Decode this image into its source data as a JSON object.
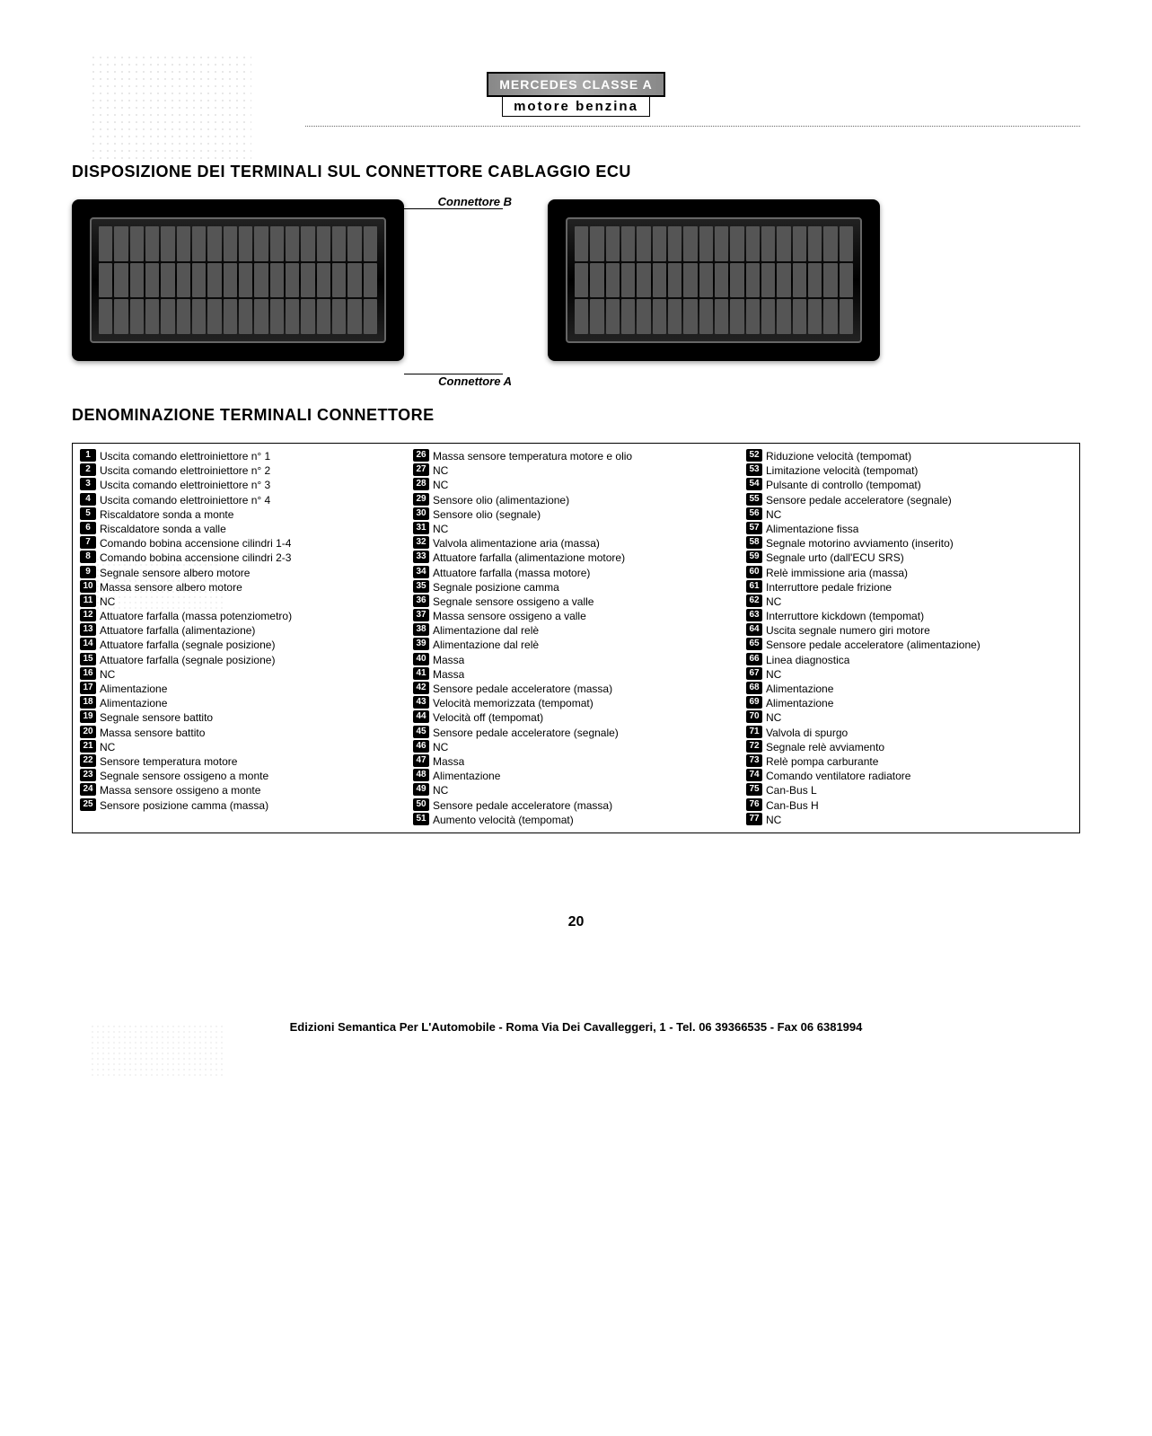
{
  "header": {
    "brand": "MERCEDES CLASSE A",
    "engine": "motore benzina"
  },
  "section1_title": "DISPOSIZIONE DEI TERMINALI SUL CONNETTORE CABLAGGIO ECU",
  "connector_labels": {
    "a": "Connettore A",
    "b": "Connettore B"
  },
  "section2_title": "DENOMINAZIONE TERMINALI CONNETTORE",
  "pins_col1": [
    {
      "n": "1",
      "t": "Uscita comando elettroiniettore n° 1"
    },
    {
      "n": "2",
      "t": "Uscita comando elettroiniettore n° 2"
    },
    {
      "n": "3",
      "t": "Uscita comando elettroiniettore n° 3"
    },
    {
      "n": "4",
      "t": "Uscita comando elettroiniettore n° 4"
    },
    {
      "n": "5",
      "t": "Riscaldatore sonda a monte"
    },
    {
      "n": "6",
      "t": "Riscaldatore sonda a valle"
    },
    {
      "n": "7",
      "t": "Comando bobina accensione cilindri 1-4"
    },
    {
      "n": "8",
      "t": "Comando bobina accensione cilindri 2-3"
    },
    {
      "n": "9",
      "t": "Segnale sensore albero motore"
    },
    {
      "n": "10",
      "t": "Massa sensore albero motore"
    },
    {
      "n": "11",
      "t": "NC"
    },
    {
      "n": "12",
      "t": "Attuatore farfalla (massa potenziometro)"
    },
    {
      "n": "13",
      "t": "Attuatore farfalla (alimentazione)"
    },
    {
      "n": "14",
      "t": "Attuatore farfalla (segnale posizione)"
    },
    {
      "n": "15",
      "t": "Attuatore farfalla (segnale posizione)"
    },
    {
      "n": "16",
      "t": "NC"
    },
    {
      "n": "17",
      "t": "Alimentazione"
    },
    {
      "n": "18",
      "t": "Alimentazione"
    },
    {
      "n": "19",
      "t": "Segnale sensore battito"
    },
    {
      "n": "20",
      "t": "Massa sensore battito"
    },
    {
      "n": "21",
      "t": "NC"
    },
    {
      "n": "22",
      "t": "Sensore temperatura motore"
    },
    {
      "n": "23",
      "t": "Segnale sensore ossigeno a monte"
    },
    {
      "n": "24",
      "t": "Massa sensore ossigeno a monte"
    },
    {
      "n": "25",
      "t": "Sensore posizione camma (massa)"
    }
  ],
  "pins_col2": [
    {
      "n": "26",
      "t": "Massa sensore temperatura motore e olio"
    },
    {
      "n": "27",
      "t": "NC"
    },
    {
      "n": "28",
      "t": "NC"
    },
    {
      "n": "29",
      "t": "Sensore olio (alimentazione)"
    },
    {
      "n": "30",
      "t": "Sensore olio (segnale)"
    },
    {
      "n": "31",
      "t": "NC"
    },
    {
      "n": "32",
      "t": "Valvola alimentazione aria (massa)"
    },
    {
      "n": "33",
      "t": "Attuatore farfalla (alimentazione motore)"
    },
    {
      "n": "34",
      "t": "Attuatore farfalla (massa motore)"
    },
    {
      "n": "35",
      "t": "Segnale posizione camma"
    },
    {
      "n": "36",
      "t": "Segnale sensore ossigeno a valle"
    },
    {
      "n": "37",
      "t": "Massa sensore ossigeno a valle"
    },
    {
      "n": "38",
      "t": "Alimentazione dal relè"
    },
    {
      "n": "39",
      "t": "Alimentazione dal relè"
    },
    {
      "n": "40",
      "t": "Massa"
    },
    {
      "n": "41",
      "t": "Massa"
    },
    {
      "n": "42",
      "t": "Sensore pedale acceleratore (massa)"
    },
    {
      "n": "43",
      "t": "Velocità memorizzata (tempomat)"
    },
    {
      "n": "44",
      "t": "Velocità off (tempomat)"
    },
    {
      "n": "45",
      "t": "Sensore pedale acceleratore (segnale)"
    },
    {
      "n": "46",
      "t": "NC"
    },
    {
      "n": "47",
      "t": "Massa"
    },
    {
      "n": "48",
      "t": "Alimentazione"
    },
    {
      "n": "49",
      "t": "NC"
    },
    {
      "n": "50",
      "t": "Sensore pedale acceleratore (massa)"
    },
    {
      "n": "51",
      "t": "Aumento velocità (tempomat)"
    }
  ],
  "pins_col3": [
    {
      "n": "52",
      "t": "Riduzione velocità (tempomat)"
    },
    {
      "n": "53",
      "t": "Limitazione velocità (tempomat)"
    },
    {
      "n": "54",
      "t": "Pulsante di controllo (tempomat)"
    },
    {
      "n": "55",
      "t": "Sensore pedale acceleratore (segnale)"
    },
    {
      "n": "56",
      "t": "NC"
    },
    {
      "n": "57",
      "t": "Alimentazione fissa"
    },
    {
      "n": "58",
      "t": "Segnale motorino avviamento (inserito)"
    },
    {
      "n": "59",
      "t": "Segnale urto (dall'ECU SRS)"
    },
    {
      "n": "60",
      "t": "Relè immissione aria (massa)"
    },
    {
      "n": "61",
      "t": "Interruttore pedale frizione"
    },
    {
      "n": "62",
      "t": "NC"
    },
    {
      "n": "63",
      "t": "Interruttore kickdown (tempomat)"
    },
    {
      "n": "64",
      "t": "Uscita segnale numero giri motore"
    },
    {
      "n": "65",
      "t": "Sensore pedale acceleratore (alimentazione)"
    },
    {
      "n": "66",
      "t": "Linea diagnostica"
    },
    {
      "n": "67",
      "t": "NC"
    },
    {
      "n": "68",
      "t": "Alimentazione"
    },
    {
      "n": "69",
      "t": "Alimentazione"
    },
    {
      "n": "70",
      "t": "NC"
    },
    {
      "n": "71",
      "t": "Valvola di spurgo"
    },
    {
      "n": "72",
      "t": "Segnale relè avviamento"
    },
    {
      "n": "73",
      "t": "Relè pompa carburante"
    },
    {
      "n": "74",
      "t": "Comando ventilatore radiatore"
    },
    {
      "n": "75",
      "t": "Can-Bus L"
    },
    {
      "n": "76",
      "t": "Can-Bus H"
    },
    {
      "n": "77",
      "t": "NC"
    }
  ],
  "page_number": "20",
  "footer": "Edizioni Semantica Per L'Automobile - Roma Via Dei Cavalleggeri, 1 - Tel. 06 39366535 - Fax 06 6381994"
}
